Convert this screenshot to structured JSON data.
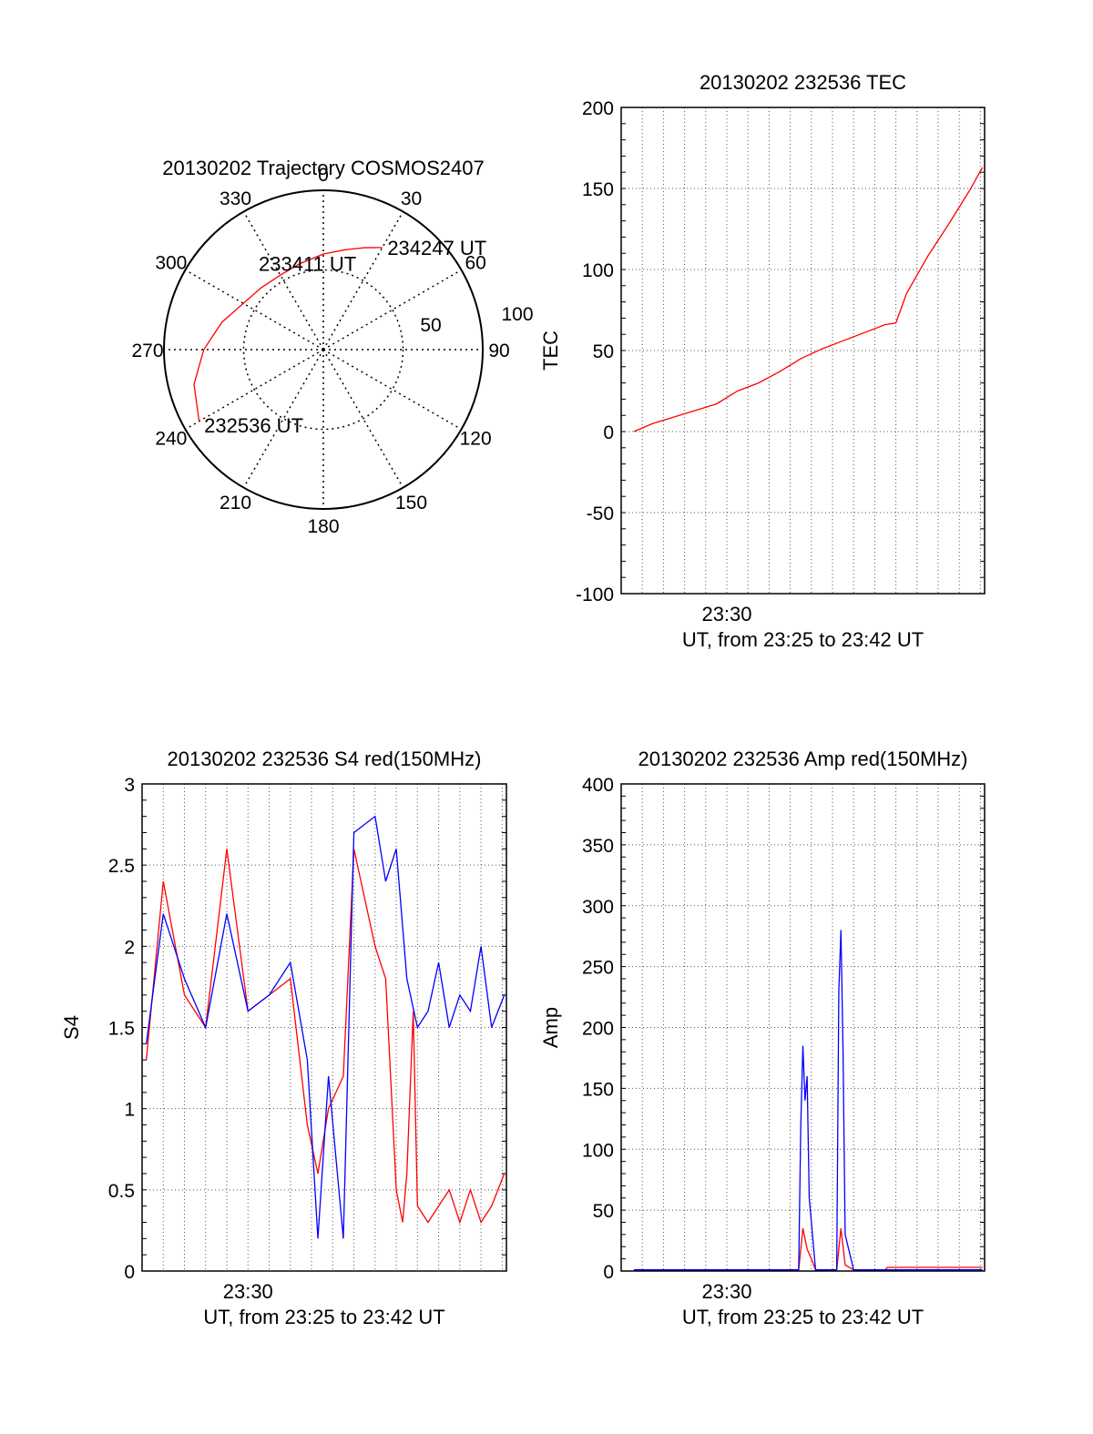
{
  "chart_data": [
    {
      "type": "polar",
      "title": "20130202 Trajectory COSMOS2407",
      "azimuth_labels": [
        "0",
        "30",
        "60",
        "90",
        "120",
        "150",
        "180",
        "210",
        "240",
        "270",
        "300",
        "330"
      ],
      "radial_labels": [
        "50",
        "100"
      ],
      "series": [
        {
          "color": "#ff0000",
          "points": [
            {
              "az": 240,
              "r": 90
            },
            {
              "az": 255,
              "r": 84
            },
            {
              "az": 270,
              "r": 75
            },
            {
              "az": 285,
              "r": 66
            },
            {
              "az": 300,
              "r": 58
            },
            {
              "az": 315,
              "r": 55
            },
            {
              "az": 330,
              "r": 54
            },
            {
              "az": 345,
              "r": 56
            },
            {
              "az": 0,
              "r": 60
            },
            {
              "az": 12,
              "r": 64
            },
            {
              "az": 22,
              "r": 69
            },
            {
              "az": 30,
              "r": 74
            }
          ]
        }
      ],
      "annotations": [
        {
          "text": "232536 UT",
          "az": 240,
          "r": 90
        },
        {
          "text": "233411 UT",
          "az": 345,
          "r": 56
        },
        {
          "text": "234247 UT",
          "az": 30,
          "r": 74
        }
      ]
    },
    {
      "type": "line",
      "title": "20130202 232536 TEC",
      "xlabel": "UT, from 23:25 to 23:42 UT",
      "ylabel": "TEC",
      "xlim": [
        0,
        17.2
      ],
      "ylim": [
        -100,
        200
      ],
      "yticks": [
        -100,
        -50,
        0,
        50,
        100,
        150,
        200
      ],
      "xtick_labels": [
        {
          "x": 5,
          "label": "23:30"
        }
      ],
      "grid": true,
      "series": [
        {
          "color": "#ff0000",
          "x": [
            0.6,
            1.5,
            2.5,
            3.5,
            4.5,
            5.5,
            6.5,
            7.5,
            8.5,
            9.5,
            10.5,
            11.5,
            12.5,
            13.0,
            13.5,
            14.5,
            15.5,
            16.5,
            17.1
          ],
          "y": [
            0,
            5,
            9,
            13,
            17,
            25,
            30,
            37,
            45,
            51,
            56,
            61,
            66,
            67,
            85,
            108,
            128,
            149,
            163
          ]
        }
      ]
    },
    {
      "type": "line",
      "title": "20130202 232536 S4 red(150MHz)",
      "xlabel": "UT, from 23:25 to 23:42 UT",
      "ylabel": "S4",
      "xlim": [
        0,
        17.2
      ],
      "ylim": [
        0,
        3
      ],
      "yticks": [
        0,
        0.5,
        1,
        1.5,
        2,
        2.5,
        3
      ],
      "xtick_labels": [
        {
          "x": 5,
          "label": "23:30"
        }
      ],
      "grid": true,
      "series": [
        {
          "color": "#ff0000",
          "x": [
            0.2,
            1,
            2,
            3,
            4,
            5,
            6,
            7,
            7.8,
            8.3,
            8.8,
            9.5,
            10,
            11,
            11.5,
            12,
            12.3,
            12.5,
            12.8,
            13,
            13.5,
            14,
            14.5,
            15,
            15.5,
            16,
            16.5,
            17.1
          ],
          "y": [
            1.3,
            2.4,
            1.7,
            1.5,
            2.6,
            1.6,
            1.7,
            1.8,
            0.9,
            0.6,
            1.0,
            1.2,
            2.6,
            2.0,
            1.8,
            0.5,
            0.3,
            0.6,
            1.6,
            0.4,
            0.3,
            0.4,
            0.5,
            0.3,
            0.5,
            0.3,
            0.4,
            0.6
          ]
        },
        {
          "color": "#0000ff",
          "x": [
            0.2,
            1,
            2,
            3,
            4,
            5,
            6,
            7,
            7.8,
            8.3,
            8.8,
            9.5,
            10,
            11,
            11.5,
            12,
            12.5,
            13,
            13.5,
            14,
            14.5,
            15,
            15.5,
            16,
            16.5,
            17.1
          ],
          "y": [
            1.4,
            2.2,
            1.8,
            1.5,
            2.2,
            1.6,
            1.7,
            1.9,
            1.3,
            0.2,
            1.2,
            0.2,
            2.7,
            2.8,
            2.4,
            2.6,
            1.8,
            1.5,
            1.6,
            1.9,
            1.5,
            1.7,
            1.6,
            2.0,
            1.5,
            1.7
          ]
        }
      ]
    },
    {
      "type": "line",
      "title": "20130202 232536 Amp red(150MHz)",
      "xlabel": "UT, from 23:25 to 23:42 UT",
      "ylabel": "Amp",
      "xlim": [
        0,
        17.2
      ],
      "ylim": [
        0,
        400
      ],
      "yticks": [
        0,
        50,
        100,
        150,
        200,
        250,
        300,
        350,
        400
      ],
      "xtick_labels": [
        {
          "x": 5,
          "label": "23:30"
        }
      ],
      "grid": true,
      "series": [
        {
          "color": "#ff0000",
          "x": [
            0.6,
            4,
            8,
            8.4,
            8.6,
            8.8,
            9,
            9.2,
            10,
            10.2,
            10.4,
            10.6,
            11,
            12.5,
            12.6,
            17.1
          ],
          "y": [
            1,
            1,
            1,
            1,
            35,
            18,
            10,
            1,
            1,
            1,
            35,
            5,
            1,
            1,
            3,
            3
          ]
        },
        {
          "color": "#0000ff",
          "x": [
            0.6,
            4,
            8,
            8.4,
            8.5,
            8.6,
            8.7,
            8.8,
            8.9,
            9.2,
            10,
            10.2,
            10.3,
            10.4,
            10.5,
            10.6,
            11,
            12.5,
            17.1
          ],
          "y": [
            1,
            1,
            1,
            1,
            120,
            185,
            140,
            160,
            60,
            1,
            1,
            1,
            230,
            280,
            180,
            30,
            1,
            1,
            1
          ]
        }
      ]
    }
  ]
}
